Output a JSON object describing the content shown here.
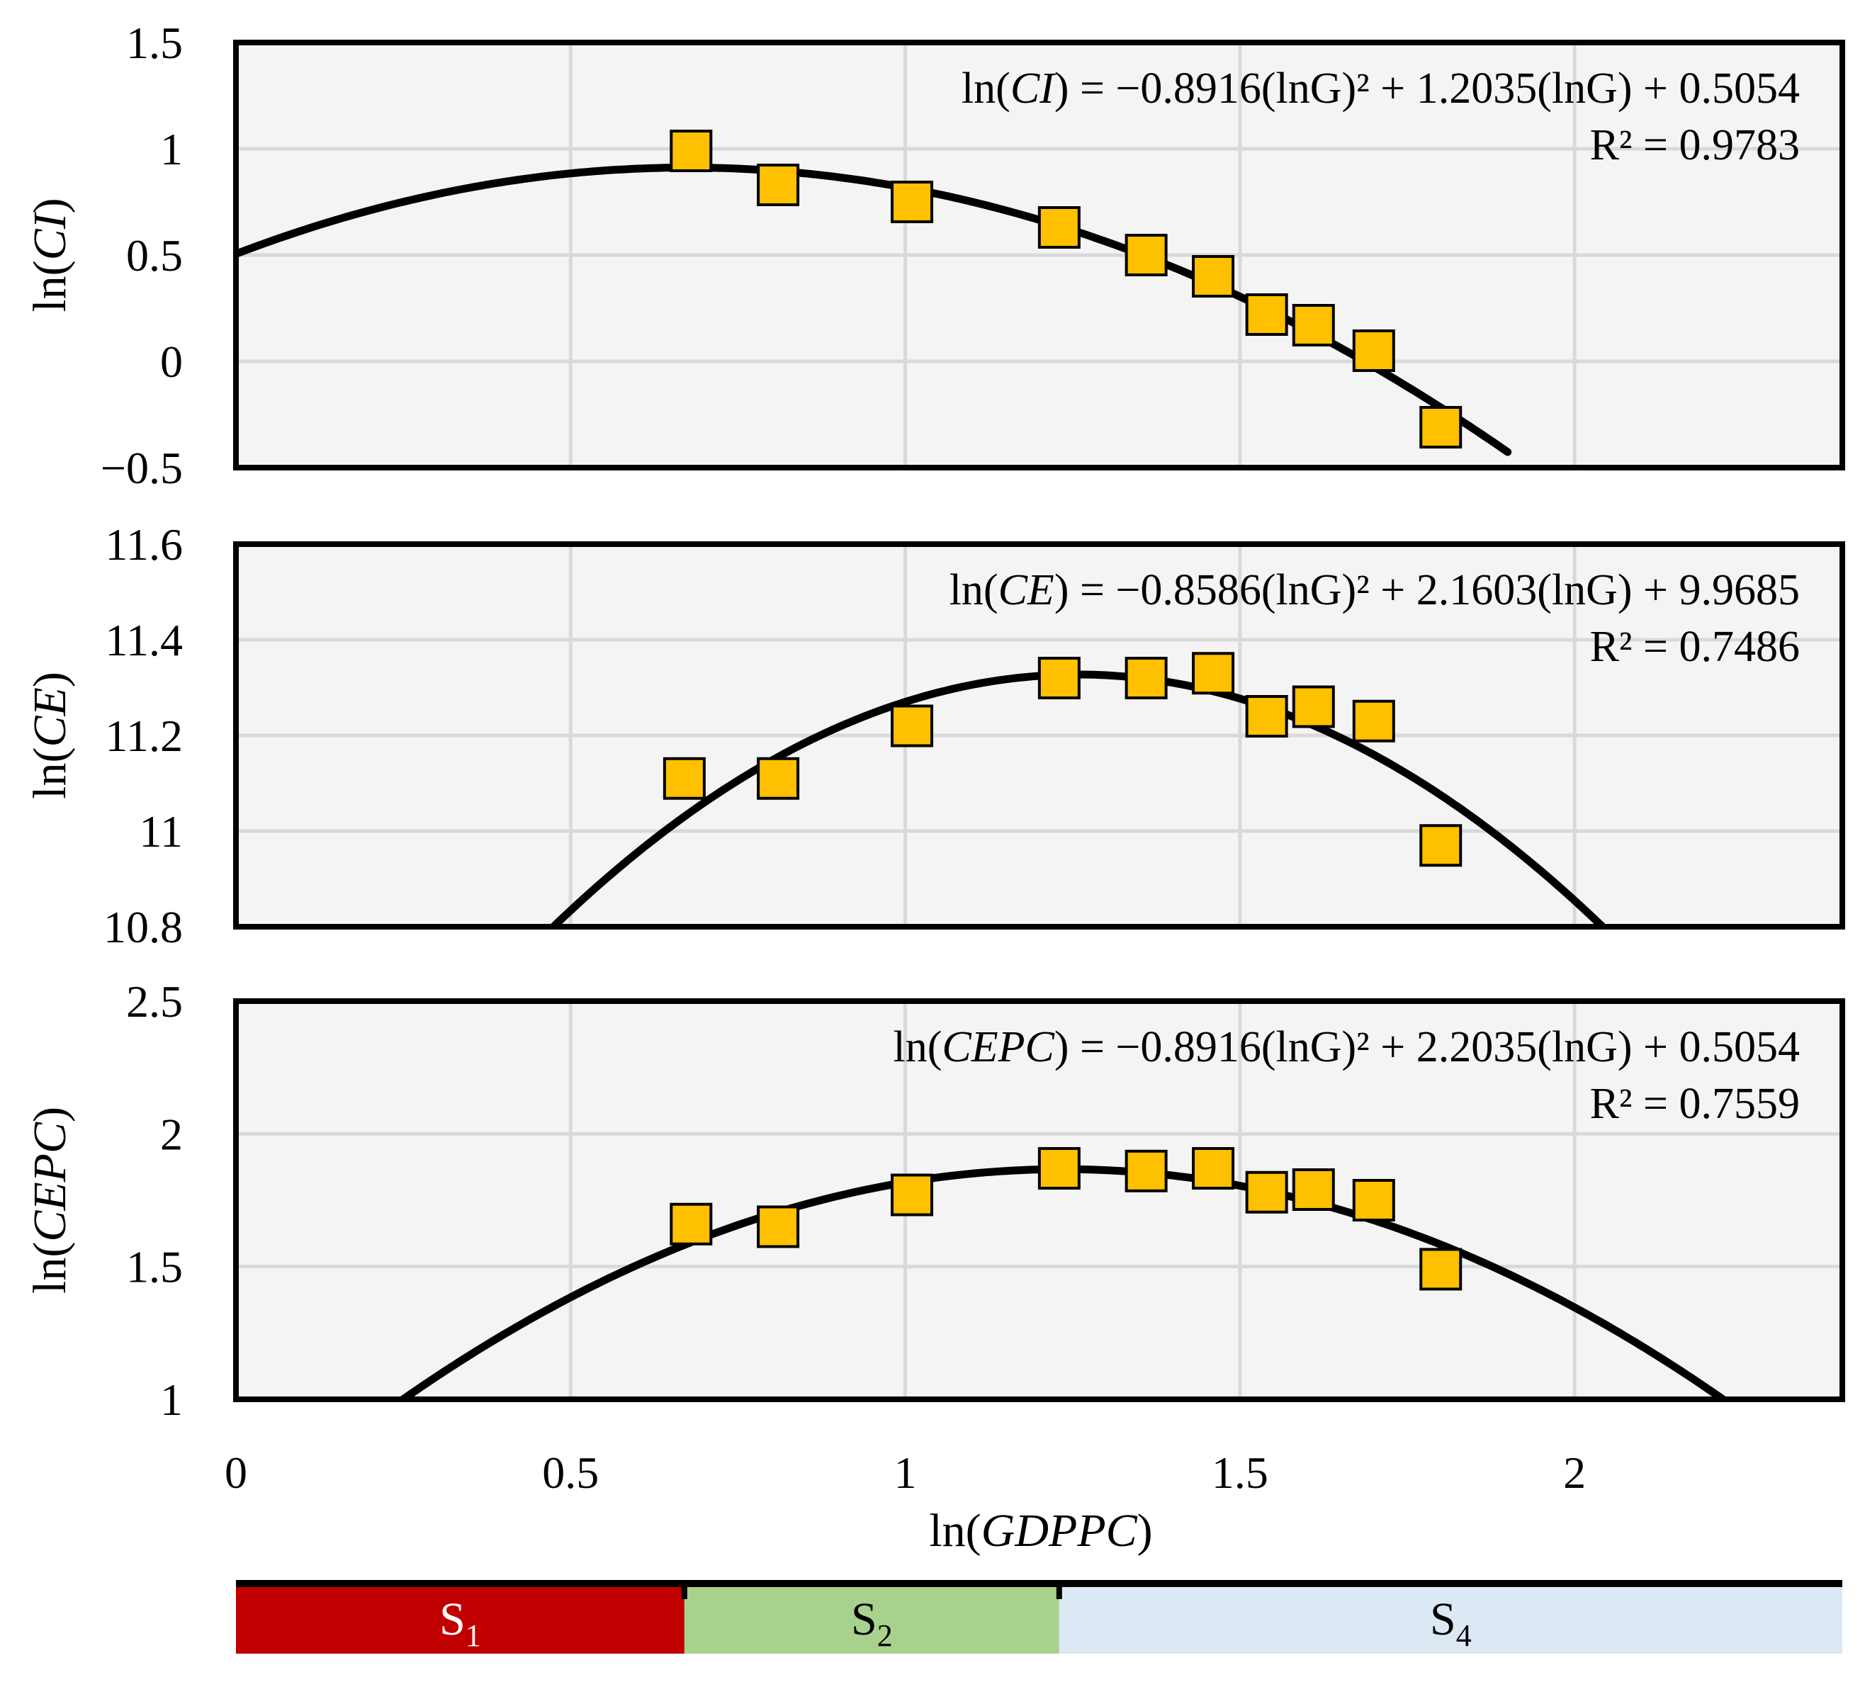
{
  "colors": {
    "panel_bg": "#f4f4f4",
    "grid": "#d9d9d9",
    "marker_fill": "#ffc000",
    "marker_stroke": "#000000",
    "curve": "#000000",
    "stage_colors": [
      "#c00000",
      "#a9d18e",
      "#dce9f5"
    ]
  },
  "chart_data": [
    {
      "type": "scatter",
      "xlabel": "ln(GDPPC)",
      "ylabel": "ln(CI)",
      "ylabel_parts": {
        "prefix": "ln(",
        "var": "CI",
        "suffix": ")"
      },
      "xlim": [
        0,
        2.4
      ],
      "ylim": [
        -0.5,
        1.5
      ],
      "xticks": [
        0,
        0.5,
        1,
        1.5,
        2
      ],
      "yticks": [
        -0.5,
        0,
        0.5,
        1,
        1.5
      ],
      "ytick_labels": [
        "−0.5",
        "0",
        "0.5",
        "1",
        "1.5"
      ],
      "x": [
        0.68,
        0.81,
        1.01,
        1.23,
        1.36,
        1.46,
        1.54,
        1.61,
        1.7,
        1.8
      ],
      "y": [
        0.99,
        0.83,
        0.75,
        0.63,
        0.5,
        0.4,
        0.22,
        0.17,
        0.05,
        -0.31
      ],
      "fit": {
        "a": -0.8916,
        "b": 1.2035,
        "c": 0.5054,
        "x_range": [
          0,
          1.9
        ]
      },
      "equation": {
        "lhs_var": "CI",
        "text": " = −0.8916(lnG)² + 1.2035(lnG) + 0.5054"
      },
      "r2_text": "R² = 0.9783"
    },
    {
      "type": "scatter",
      "xlabel": "ln(GDPPC)",
      "ylabel": "ln(CE)",
      "ylabel_parts": {
        "prefix": "ln(",
        "var": "CE",
        "suffix": ")"
      },
      "xlim": [
        0,
        2.4
      ],
      "ylim": [
        10.8,
        11.6
      ],
      "xticks": [
        0,
        0.5,
        1,
        1.5,
        2
      ],
      "yticks": [
        10.8,
        11,
        11.2,
        11.4,
        11.6
      ],
      "ytick_labels": [
        "10.8",
        "11",
        "11.2",
        "11.4",
        "11.6"
      ],
      "x": [
        0.67,
        0.81,
        1.01,
        1.23,
        1.36,
        1.46,
        1.54,
        1.61,
        1.7,
        1.8
      ],
      "y": [
        11.11,
        11.11,
        11.22,
        11.32,
        11.32,
        11.33,
        11.24,
        11.26,
        11.23,
        10.97
      ],
      "fit": {
        "a": -0.8586,
        "b": 2.1603,
        "c": 9.9685,
        "x_range": [
          0,
          2.4
        ]
      },
      "equation": {
        "lhs_var": "CE",
        "text": " = −0.8586(lnG)² + 2.1603(lnG) + 9.9685"
      },
      "r2_text": "R² = 0.7486"
    },
    {
      "type": "scatter",
      "xlabel": "ln(GDPPC)",
      "ylabel": "ln(CEPC)",
      "ylabel_parts": {
        "prefix": "ln(",
        "var": "CEPC",
        "suffix": ")"
      },
      "xlim": [
        0,
        2.4
      ],
      "ylim": [
        1,
        2.5
      ],
      "xticks": [
        0,
        0.5,
        1,
        1.5,
        2
      ],
      "xtick_labels": [
        "0",
        "0.5",
        "1",
        "1.5",
        "2"
      ],
      "yticks": [
        1,
        1.5,
        2,
        2.5
      ],
      "ytick_labels": [
        "1",
        "1.5",
        "2",
        "2.5"
      ],
      "x": [
        0.68,
        0.81,
        1.01,
        1.23,
        1.36,
        1.46,
        1.54,
        1.61,
        1.7,
        1.8
      ],
      "y": [
        1.66,
        1.65,
        1.77,
        1.87,
        1.86,
        1.87,
        1.78,
        1.79,
        1.75,
        1.49
      ],
      "fit": {
        "a": -0.8916,
        "b": 2.2035,
        "c": 0.5054,
        "x_range": [
          0,
          2.4
        ]
      },
      "equation": {
        "lhs_var": "CEPC",
        "text": " = −0.8916(lnG)² + 2.2035(lnG) + 0.5054"
      },
      "r2_text": "R² = 0.7559"
    }
  ],
  "x_axis": {
    "label_prefix": "ln(",
    "label_var": "GDPPC",
    "label_suffix": ")"
  },
  "stages": [
    {
      "label": "S",
      "sub": "1",
      "x_start": 0,
      "x_end": 0.67
    },
    {
      "label": "S",
      "sub": "2",
      "x_start": 0.67,
      "x_end": 1.23
    },
    {
      "label": "S",
      "sub": "4",
      "x_start": 1.23,
      "x_end": 2.4
    }
  ]
}
